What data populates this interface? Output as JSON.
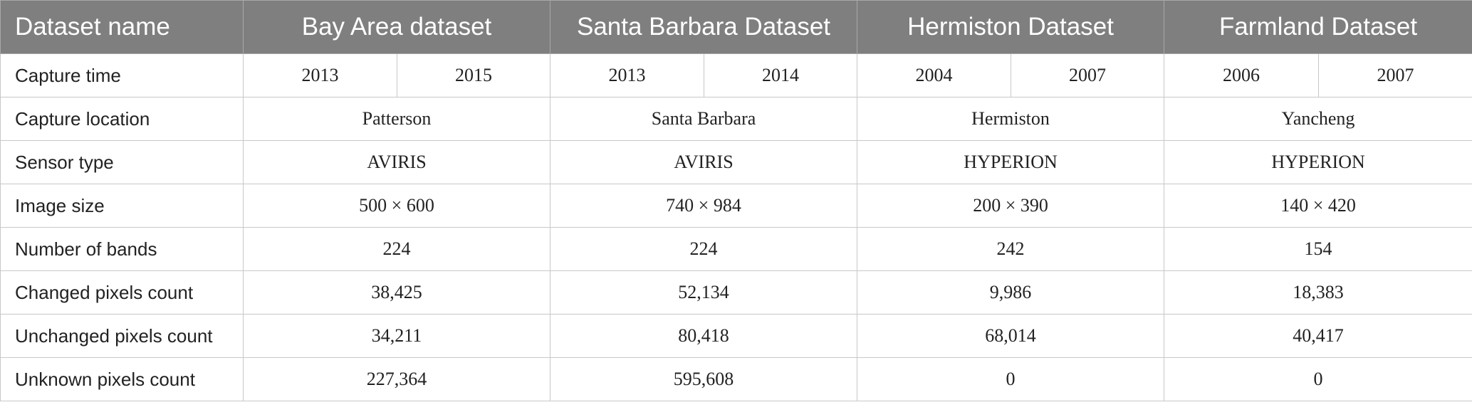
{
  "header": {
    "col0": "Dataset name",
    "datasets": [
      "Bay Area dataset",
      "Santa Barbara Dataset",
      "Hermiston Dataset",
      "Farmland Dataset"
    ]
  },
  "rows": {
    "capture_time": {
      "label": "Capture time",
      "values": [
        "2013",
        "2015",
        "2013",
        "2014",
        "2004",
        "2007",
        "2006",
        "2007"
      ]
    },
    "capture_location": {
      "label": "Capture location",
      "values": [
        "Patterson",
        "Santa Barbara",
        "Hermiston",
        "Yancheng"
      ]
    },
    "sensor_type": {
      "label": "Sensor type",
      "values": [
        "AVIRIS",
        "AVIRIS",
        "HYPERION",
        "HYPERION"
      ]
    },
    "image_size": {
      "label": "Image size",
      "values": [
        "500 × 600",
        "740 × 984",
        "200 × 390",
        "140 × 420"
      ]
    },
    "bands": {
      "label": "Number of bands",
      "values": [
        "224",
        "224",
        "242",
        "154"
      ]
    },
    "changed": {
      "label": "Changed pixels count",
      "values": [
        "38,425",
        "52,134",
        "9,986",
        "18,383"
      ]
    },
    "unchanged": {
      "label": "Unchanged pixels count",
      "values": [
        "34,211",
        "80,418",
        "68,014",
        "40,417"
      ]
    },
    "unknown": {
      "label": "Unknown pixels count",
      "values": [
        "227,364",
        "595,608",
        "0",
        "0"
      ]
    }
  }
}
